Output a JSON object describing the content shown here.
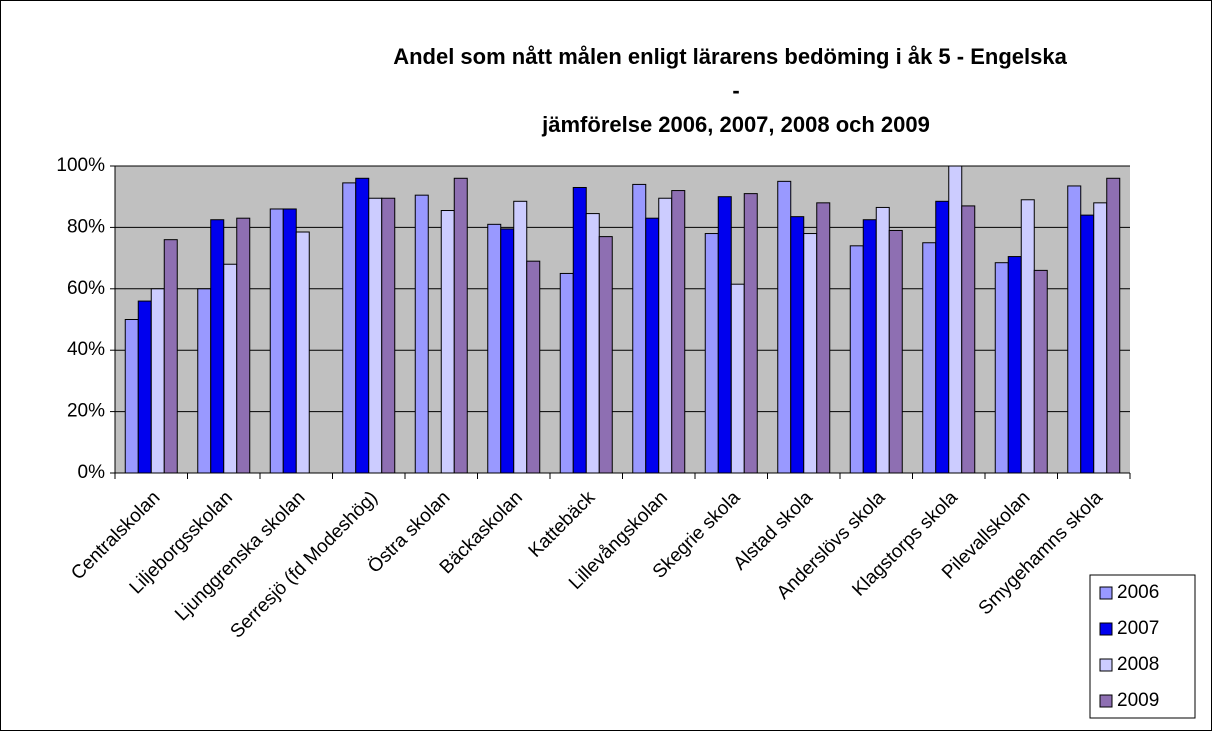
{
  "chart_data": {
    "type": "bar",
    "title": [
      "Andel som nått målen enligt lärarens bedöming i åk 5 - Engelska",
      "-",
      "jämförelse 2006, 2007, 2008 och 2009"
    ],
    "categories": [
      "Centralskolan",
      "Liljeborgsskolan",
      "Ljunggrenska skolan",
      "Serresjö (fd Modeshög)",
      "Östra skolan",
      "Bäckaskolan",
      "Kattebäck",
      "Lillevångskolan",
      "Skegrie skola",
      "Alstad skola",
      "Anderslövs skola",
      "Klagstorps skola",
      "Pilevallskolan",
      "Smygehamns skola"
    ],
    "series": [
      {
        "name": "2006",
        "color": "#9999ff",
        "values": [
          50,
          60,
          86,
          94.5,
          90.5,
          81,
          65,
          94,
          78,
          95,
          74,
          75,
          68.5,
          93.5
        ]
      },
      {
        "name": "2007",
        "color": "#0000ee",
        "values": [
          56,
          82.5,
          86,
          96,
          null,
          79.5,
          93,
          83,
          90,
          83.5,
          82.5,
          88.5,
          70.5,
          84
        ]
      },
      {
        "name": "2008",
        "color": "#ccccff",
        "values": [
          60,
          68,
          78.5,
          89.5,
          85.5,
          88.5,
          84.5,
          89.5,
          61.5,
          78,
          86.5,
          100,
          89,
          88
        ]
      },
      {
        "name": "2009",
        "color": "#8e6fb2",
        "values": [
          76,
          83,
          null,
          89.5,
          96,
          69,
          77,
          92,
          91,
          88,
          79,
          87,
          66,
          96
        ]
      }
    ],
    "ylim": [
      0,
      100
    ],
    "yticks": [
      {
        "value": 0,
        "label": "0%"
      },
      {
        "value": 20,
        "label": "20%"
      },
      {
        "value": 40,
        "label": "40%"
      },
      {
        "value": 60,
        "label": "60%"
      },
      {
        "value": 80,
        "label": "80%"
      },
      {
        "value": 100,
        "label": "100%"
      }
    ],
    "grid": true,
    "legend": "lower right"
  }
}
